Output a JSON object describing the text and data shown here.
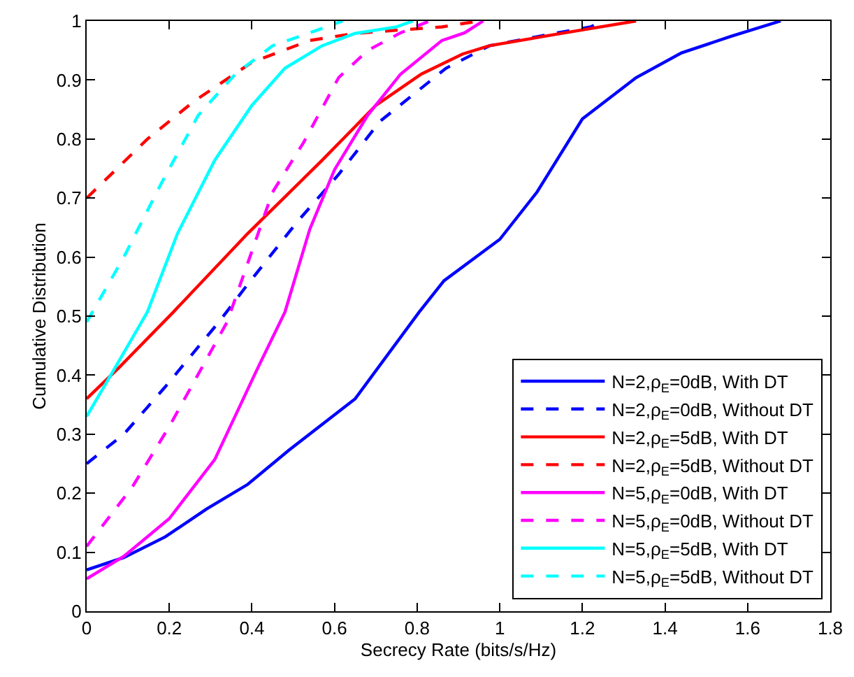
{
  "chart_data": {
    "type": "line",
    "xlabel": "Secrecy Rate (bits/s/Hz)",
    "ylabel": "Cumulative Distribution",
    "xlim": [
      0,
      1.8
    ],
    "ylim": [
      0,
      1
    ],
    "xticks": [
      0,
      0.2,
      0.4,
      0.6,
      0.8,
      1,
      1.2,
      1.4,
      1.6,
      1.8
    ],
    "yticks": [
      0,
      0.1,
      0.2,
      0.3,
      0.4,
      0.5,
      0.6,
      0.7,
      0.8,
      0.9,
      1
    ],
    "legend": "bottom right",
    "marker": "none",
    "series": [
      {
        "name": "N=2,ρ$_{E}$=0dB, With DT",
        "color": "#0000ff",
        "line_style": "solid",
        "x": [
          0,
          0.09,
          0.19,
          0.29,
          0.39,
          0.49,
          0.65,
          0.805,
          0.865,
          1.0,
          1.09,
          1.2,
          1.33,
          1.44,
          1.56,
          1.68
        ],
        "values": [
          0.07,
          0.091,
          0.126,
          0.173,
          0.215,
          0.273,
          0.36,
          0.507,
          0.56,
          0.63,
          0.71,
          0.834,
          0.904,
          0.946,
          0.974,
          1.0
        ]
      },
      {
        "name": "N=2,ρ$_{E}$=0dB, Without DT",
        "color": "#0000ff",
        "line_style": "dashed",
        "x": [
          0,
          0.09,
          0.19,
          0.32,
          0.39,
          0.51,
          0.61,
          0.71,
          0.87,
          0.975,
          1.14,
          1.22,
          1.25
        ],
        "values": [
          0.25,
          0.3,
          0.38,
          0.49,
          0.554,
          0.66,
          0.74,
          0.83,
          0.92,
          0.958,
          0.98,
          0.99,
          1.0
        ]
      },
      {
        "name": "N=2,ρ$_{E}$=5dB, With DT",
        "color": "#ff0000",
        "line_style": "solid",
        "x": [
          0,
          0.08,
          0.21,
          0.39,
          0.57,
          0.7,
          0.81,
          0.91,
          0.975,
          1.14,
          1.33
        ],
        "values": [
          0.36,
          0.414,
          0.507,
          0.64,
          0.764,
          0.857,
          0.91,
          0.944,
          0.958,
          0.978,
          1.0
        ]
      },
      {
        "name": "N=2,ρ$_{E}$=5dB, Without DT",
        "color": "#ff0000",
        "line_style": "dashed",
        "x": [
          0,
          0.147,
          0.26,
          0.4,
          0.54,
          0.65,
          0.86,
          0.95
        ],
        "values": [
          0.7,
          0.8,
          0.864,
          0.93,
          0.967,
          0.979,
          0.99,
          1.0
        ]
      },
      {
        "name": "N=5,ρ$_{E}$=0dB, With DT",
        "color": "#ff00ff",
        "line_style": "solid",
        "x": [
          0,
          0.09,
          0.2,
          0.31,
          0.41,
          0.48,
          0.54,
          0.6,
          0.68,
          0.76,
          0.86,
          0.915,
          0.96
        ],
        "values": [
          0.055,
          0.093,
          0.157,
          0.257,
          0.406,
          0.507,
          0.647,
          0.748,
          0.84,
          0.91,
          0.967,
          0.98,
          1.0
        ]
      },
      {
        "name": "N=5,ρ$_{E}$=0dB, Without DT",
        "color": "#ff00ff",
        "line_style": "dashed",
        "x": [
          0,
          0.11,
          0.2,
          0.34,
          0.45,
          0.525,
          0.61,
          0.68,
          0.76,
          0.83
        ],
        "values": [
          0.11,
          0.21,
          0.313,
          0.49,
          0.71,
          0.794,
          0.904,
          0.95,
          0.98,
          1.0
        ]
      },
      {
        "name": "N=5,ρ$_{E}$=5dB, With DT",
        "color": "#00ffff",
        "line_style": "solid",
        "x": [
          0,
          0.07,
          0.147,
          0.22,
          0.31,
          0.4,
          0.48,
          0.57,
          0.65,
          0.75,
          0.79
        ],
        "values": [
          0.33,
          0.414,
          0.507,
          0.64,
          0.764,
          0.857,
          0.92,
          0.958,
          0.979,
          0.99,
          1.0
        ]
      },
      {
        "name": "N=5,ρ$_{E}$=5dB, Without DT",
        "color": "#00ffff",
        "line_style": "dashed",
        "x": [
          0,
          0.09,
          0.18,
          0.27,
          0.36,
          0.45,
          0.54,
          0.62
        ],
        "values": [
          0.49,
          0.6,
          0.724,
          0.84,
          0.91,
          0.958,
          0.98,
          1.0
        ]
      }
    ]
  }
}
